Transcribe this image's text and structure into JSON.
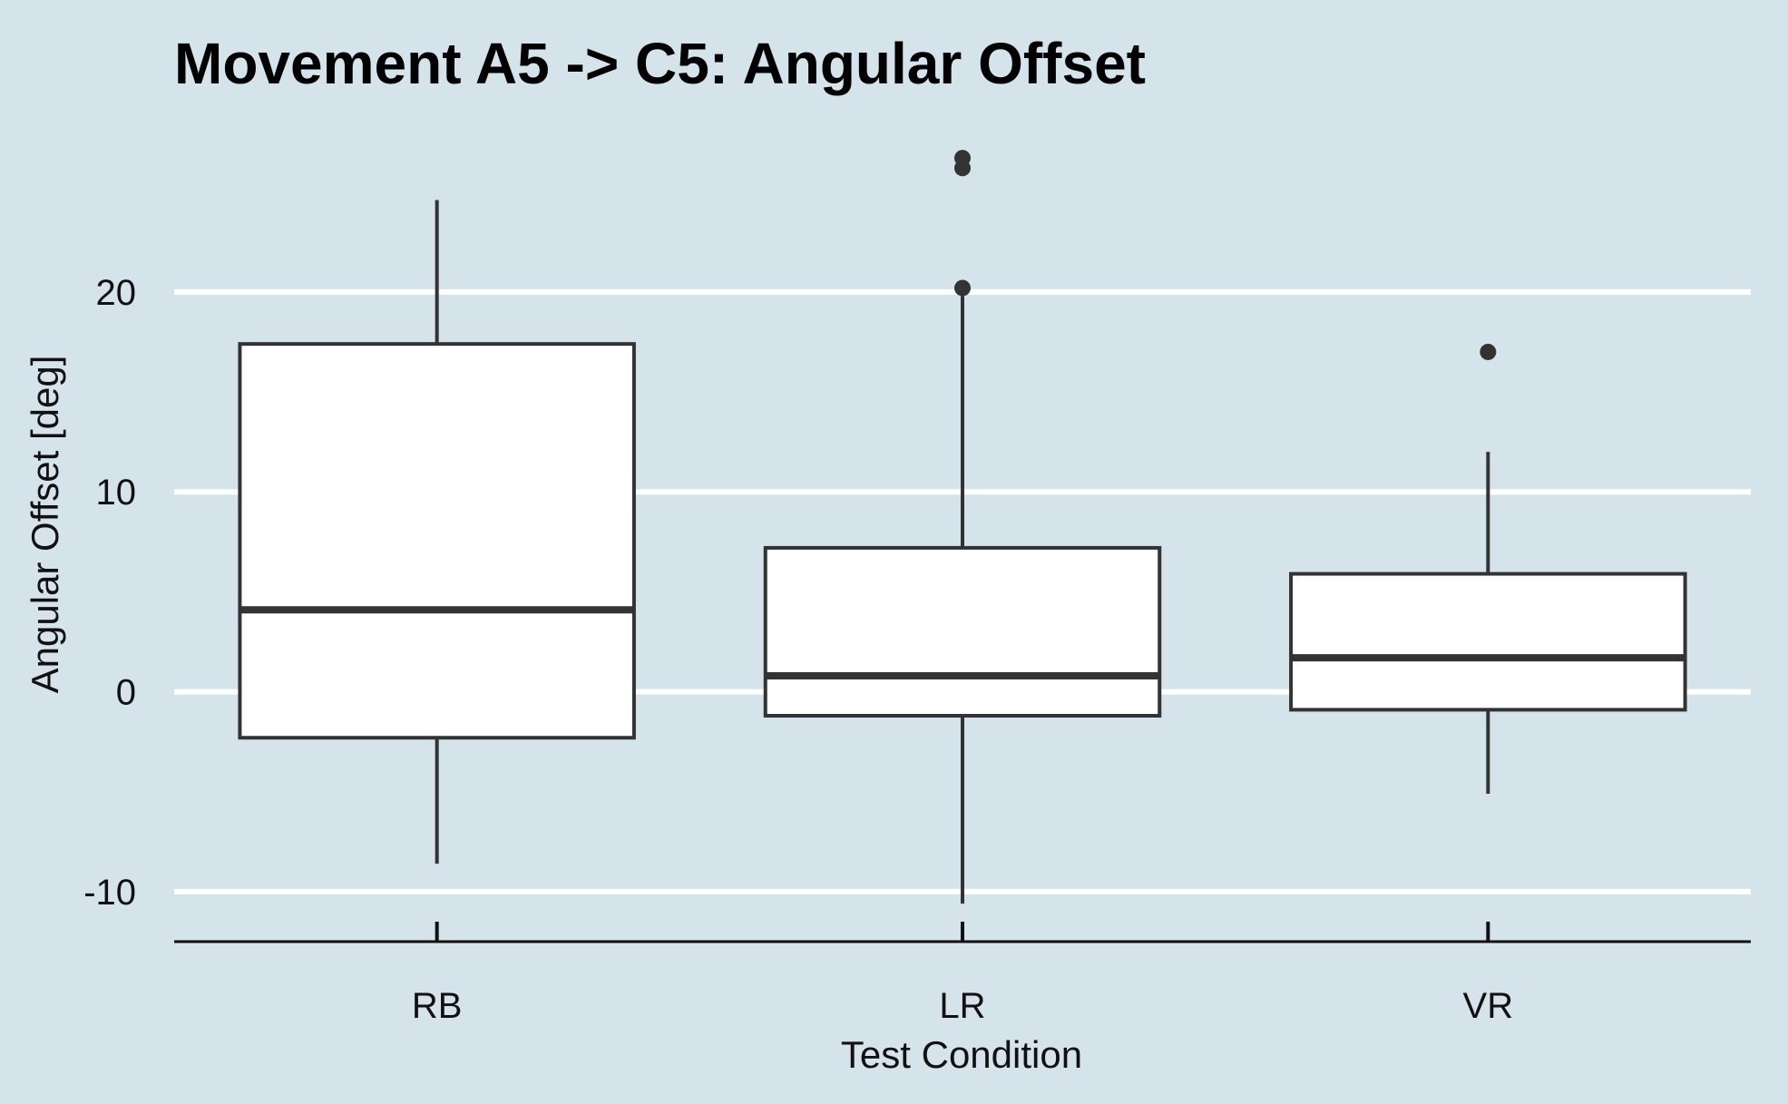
{
  "chart_data": {
    "type": "box",
    "title": "Movement A5 -> C5: Angular Offset",
    "xlabel": "Test Condition",
    "ylabel": "Angular Offset [deg]",
    "ylim": [
      -12.5,
      27.8
    ],
    "yticks": [
      -10,
      0,
      10,
      20
    ],
    "ytick_labels": [
      "-10",
      "0",
      "10",
      "20"
    ],
    "grid": "horizontal",
    "legend": "none",
    "categories": [
      "RB",
      "LR",
      "VR"
    ],
    "boxes": [
      {
        "category": "RB",
        "whisker_low": -8.6,
        "q1": -2.3,
        "median": 4.1,
        "q3": 17.4,
        "whisker_high": 24.6,
        "outliers": []
      },
      {
        "category": "LR",
        "whisker_low": -10.6,
        "q1": -1.2,
        "median": 0.8,
        "q3": 7.2,
        "whisker_high": 19.8,
        "outliers": [
          20.2,
          26.2,
          26.7
        ]
      },
      {
        "category": "VR",
        "whisker_low": -5.1,
        "q1": -0.9,
        "median": 1.7,
        "q3": 5.9,
        "whisker_high": 12.0,
        "outliers": [
          17.0
        ]
      }
    ],
    "colors": {
      "background": "#d5e4eb",
      "box_fill": "#ffffff",
      "box_stroke": "#333333",
      "grid": "#ffffff",
      "axis": "#111111"
    }
  }
}
